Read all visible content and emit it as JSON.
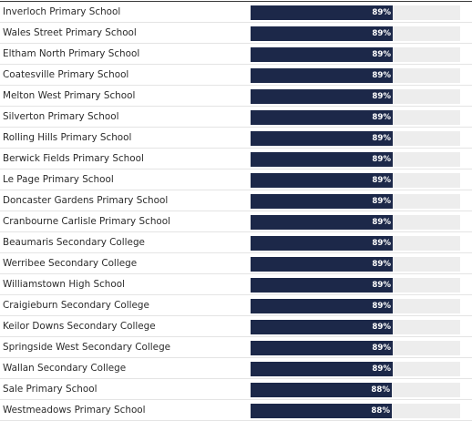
{
  "chart_data": {
    "type": "bar",
    "orientation": "horizontal",
    "categories": [
      "Inverloch Primary School",
      "Wales Street Primary School",
      "Eltham North Primary School",
      "Coatesville Primary School",
      "Melton West Primary School",
      "Silverton Primary School",
      "Rolling Hills Primary School",
      "Berwick Fields Primary School",
      "Le Page Primary School",
      "Doncaster Gardens Primary School",
      "Cranbourne Carlisle Primary School",
      "Beaumaris Secondary College",
      "Werribee Secondary College",
      "Williamstown High School",
      "Craigieburn Secondary College",
      "Keilor Downs Secondary College",
      "Springside West Secondary College",
      "Wallan Secondary College",
      "Sale Primary School",
      "Westmeadows Primary School"
    ],
    "values": [
      89,
      89,
      89,
      89,
      89,
      89,
      89,
      89,
      89,
      89,
      89,
      89,
      89,
      89,
      89,
      89,
      89,
      89,
      88,
      88
    ],
    "value_labels": [
      "89%",
      "89%",
      "89%",
      "89%",
      "89%",
      "89%",
      "89%",
      "89%",
      "89%",
      "89%",
      "89%",
      "89%",
      "89%",
      "89%",
      "89%",
      "89%",
      "89%",
      "89%",
      "88%",
      "88%"
    ],
    "xlim": [
      0,
      131
    ],
    "grid": false,
    "colors": {
      "bar": "#1c2849",
      "track": "#ededed",
      "value_text": "#ffffff"
    }
  }
}
